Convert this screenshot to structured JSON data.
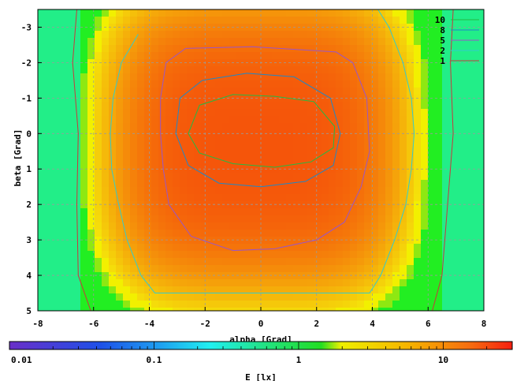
{
  "chart_data": {
    "type": "heatmap",
    "title": "",
    "xlabel": "alpha [Grad]",
    "ylabel": "beta [Grad]",
    "colorbar_label": "E [lx]",
    "xlim": [
      -8,
      8
    ],
    "ylim": [
      -3.5,
      5
    ],
    "y_inverted": true,
    "grid": true,
    "x_ticks": [
      -8,
      -6,
      -4,
      -2,
      0,
      2,
      4,
      6,
      8
    ],
    "x_tick_labels": [
      "-8",
      "-6",
      "-4",
      "-2",
      "0",
      "2",
      "4",
      "6",
      "8"
    ],
    "y_ticks": [
      -3,
      -2,
      -1,
      0,
      1,
      2,
      3,
      4,
      5
    ],
    "y_tick_labels": [
      "-3",
      "-2",
      "-1",
      "0",
      "1",
      "2",
      "3",
      "4",
      "5"
    ],
    "colorbar_scale": "log",
    "colorbar_range": [
      0.01,
      30
    ],
    "colorbar_ticks": [
      0.01,
      0.1,
      1,
      10
    ],
    "colorbar_tick_labels": [
      "0.01",
      "0.1",
      "1",
      "10"
    ],
    "legend_placement": "top-right",
    "contour_levels": [
      {
        "level": 10,
        "label": "10",
        "color": "#22bb44"
      },
      {
        "level": 8,
        "label": "8",
        "color": "#1e88c8"
      },
      {
        "level": 5,
        "label": "5",
        "color": "#9a55c8"
      },
      {
        "level": 2,
        "label": "2",
        "color": "#33cccc"
      },
      {
        "level": 1,
        "label": "1",
        "color": "#c8383c"
      }
    ],
    "contours": [
      {
        "level": 1,
        "points": [
          [
            -6.6,
            -3.5
          ],
          [
            -6.75,
            -2
          ],
          [
            -6.55,
            0
          ],
          [
            -6.6,
            2
          ],
          [
            -6.55,
            4
          ],
          [
            -6.1,
            5
          ],
          [
            6.15,
            5
          ],
          [
            6.5,
            4
          ],
          [
            6.7,
            2
          ],
          [
            6.9,
            0
          ],
          [
            6.8,
            -2
          ],
          [
            6.9,
            -3.5
          ]
        ]
      },
      {
        "level": 2,
        "points": [
          [
            -4.4,
            -2.8
          ],
          [
            -5.0,
            -2
          ],
          [
            -5.3,
            -1
          ],
          [
            -5.4,
            0
          ],
          [
            -5.35,
            1
          ],
          [
            -5.1,
            2
          ],
          [
            -4.8,
            3
          ],
          [
            -4.3,
            4
          ],
          [
            -3.8,
            4.5
          ],
          [
            3.9,
            4.5
          ],
          [
            4.3,
            4
          ],
          [
            4.8,
            3
          ],
          [
            5.2,
            2
          ],
          [
            5.4,
            1
          ],
          [
            5.5,
            0
          ],
          [
            5.4,
            -1
          ],
          [
            5.1,
            -2
          ],
          [
            4.6,
            -3
          ],
          [
            4.2,
            -3.5
          ]
        ]
      },
      {
        "level": 5,
        "points": [
          [
            -2.7,
            -2.4
          ],
          [
            -3.4,
            -2
          ],
          [
            -3.6,
            -1
          ],
          [
            -3.6,
            0
          ],
          [
            -3.5,
            1
          ],
          [
            -3.3,
            2
          ],
          [
            -2.5,
            2.9
          ],
          [
            -1.0,
            3.3
          ],
          [
            0.5,
            3.25
          ],
          [
            2.0,
            3.0
          ],
          [
            3.0,
            2.5
          ],
          [
            3.6,
            1.5
          ],
          [
            3.9,
            0.5
          ],
          [
            3.8,
            -1.0
          ],
          [
            3.3,
            -2.0
          ],
          [
            2.7,
            -2.3
          ],
          [
            -0.3,
            -2.45
          ],
          [
            -2.7,
            -2.4
          ]
        ]
      },
      {
        "level": 8,
        "points": [
          [
            -2.1,
            -1.5
          ],
          [
            -2.9,
            -1.0
          ],
          [
            -3.05,
            0
          ],
          [
            -2.6,
            0.9
          ],
          [
            -1.5,
            1.4
          ],
          [
            0,
            1.5
          ],
          [
            1.6,
            1.35
          ],
          [
            2.6,
            0.9
          ],
          [
            2.85,
            0
          ],
          [
            2.5,
            -1.0
          ],
          [
            1.2,
            -1.6
          ],
          [
            -0.5,
            -1.7
          ],
          [
            -2.1,
            -1.5
          ]
        ]
      },
      {
        "level": 10,
        "points": [
          [
            -2.6,
            0
          ],
          [
            -2.2,
            -0.8
          ],
          [
            -1.0,
            -1.1
          ],
          [
            0.5,
            -1.05
          ],
          [
            1.9,
            -0.9
          ],
          [
            2.65,
            -0.2
          ],
          [
            2.6,
            0.4
          ],
          [
            1.8,
            0.8
          ],
          [
            0.5,
            0.95
          ],
          [
            -1.0,
            0.85
          ],
          [
            -2.2,
            0.55
          ],
          [
            -2.6,
            0
          ]
        ]
      }
    ]
  }
}
